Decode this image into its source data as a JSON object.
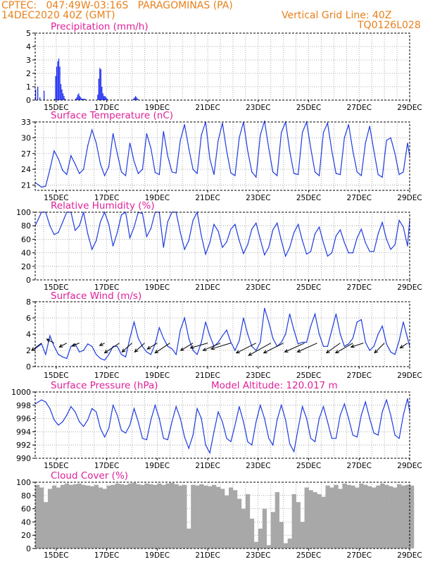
{
  "header": {
    "line1": "CPTEC:   047:49W-03:16S   PARAGOMINAS (PA)",
    "line2": "14DEC2020 40Z (GMT)",
    "grid_note": "Vertical Grid Line: 40Z",
    "run_code": "TQ0126L028"
  },
  "colors": {
    "header": "#e8801c",
    "title": "#e0209a",
    "line": "#1f3be0",
    "bar": "#1d2bf2",
    "cloud": "#a8a8a8",
    "arrow": "#000000"
  },
  "x_axis": {
    "ticks": [
      "15DEC",
      "17DEC",
      "19DEC",
      "21DEC",
      "23DEC",
      "25DEC",
      "27DEC",
      "29DEC"
    ],
    "tick_hours": [
      20,
      68,
      116,
      164,
      212,
      260,
      308,
      356
    ],
    "range_hours": [
      0,
      356
    ],
    "grid_step_hours": 12
  },
  "chart_data": [
    {
      "id": "precip",
      "type": "bar",
      "title": "Precipitation (mm/h)",
      "ylim": [
        0,
        5
      ],
      "yticks": [
        0,
        1,
        2,
        3,
        4,
        5
      ],
      "x_hours": [
        0,
        2,
        4,
        6,
        8,
        18,
        19,
        20,
        21,
        22,
        23,
        24,
        25,
        26,
        27,
        28,
        38,
        39,
        40,
        41,
        42,
        43,
        44,
        45,
        46,
        47,
        48,
        58,
        59,
        60,
        61,
        62,
        63,
        64,
        65,
        66,
        67,
        68,
        86,
        87,
        88,
        89,
        90,
        91,
        92,
        93,
        94,
        95,
        96,
        97,
        98,
        99,
        108,
        109,
        110,
        111,
        112,
        113,
        114,
        115,
        116,
        117,
        118,
        119,
        120,
        121,
        122,
        123,
        124,
        131,
        132,
        133,
        134,
        135,
        136,
        137,
        138,
        139,
        140,
        141,
        142,
        143,
        144,
        145,
        146,
        147,
        148,
        157,
        158,
        159,
        160,
        161,
        162,
        163,
        164,
        165,
        166,
        167,
        168,
        169,
        170,
        171,
        172,
        173,
        174,
        175,
        176,
        177,
        178,
        179,
        180,
        181,
        182,
        183,
        184,
        185,
        186,
        345,
        346,
        347,
        348,
        349,
        350,
        351,
        352,
        353,
        354
      ],
      "values": [
        0.8,
        1.0,
        0.2,
        0,
        0.7,
        0.1,
        1.8,
        2.5,
        2.9,
        3.1,
        2.5,
        1.2,
        0.8,
        0.5,
        0.3,
        0.1,
        0.1,
        0.2,
        0.4,
        0.5,
        0.3,
        0.2,
        0.1,
        0.1,
        0.1,
        0.1,
        0,
        0,
        0.4,
        1.6,
        2.4,
        2.3,
        1.0,
        0.5,
        0.3,
        0.3,
        0.2,
        0.1,
        0,
        0,
        0,
        0,
        0,
        0,
        0,
        0.1,
        0.2,
        0.3,
        0.2,
        0.1,
        0,
        0,
        0,
        0,
        0,
        0,
        0,
        0,
        0,
        0,
        0,
        0,
        0,
        0,
        0,
        0,
        0,
        0,
        0,
        0,
        0,
        0,
        0,
        0,
        0,
        0,
        0,
        0,
        0,
        0,
        0,
        0,
        0,
        0,
        0,
        0,
        0,
        0,
        0,
        0,
        0,
        0,
        0,
        0,
        0,
        0,
        0,
        0,
        0,
        0,
        0,
        0,
        0,
        0,
        0,
        0,
        0,
        0,
        0,
        0,
        0,
        0,
        0,
        0,
        0,
        0,
        0,
        0,
        0,
        0,
        0,
        0,
        0,
        0,
        0,
        0,
        0
      ]
    },
    {
      "id": "temp",
      "type": "line",
      "title": "Surface Temperature (nC)",
      "ylim": [
        20,
        33
      ],
      "yticks": [
        21,
        24,
        27,
        30,
        33
      ],
      "x_hours": [
        0,
        6,
        10,
        14,
        18,
        22,
        26,
        30,
        34,
        38,
        42,
        46,
        50,
        54,
        58,
        62,
        66,
        70,
        74,
        78,
        82,
        86,
        90,
        94,
        98,
        102,
        106,
        110,
        114,
        118,
        122,
        126,
        130,
        134,
        138,
        142,
        146,
        150,
        154,
        158,
        162,
        166,
        170,
        174,
        178,
        182,
        186,
        190,
        194,
        198,
        202,
        206,
        210,
        214,
        218,
        222,
        226,
        230,
        234,
        238,
        242,
        246,
        250,
        254,
        258,
        262,
        266,
        270,
        274,
        278,
        282,
        286,
        290,
        294,
        298,
        302,
        306,
        310,
        314,
        318,
        322,
        326,
        330,
        334,
        338,
        342,
        346,
        350,
        354,
        356
      ],
      "values": [
        21.5,
        20.6,
        20.8,
        24.0,
        27.5,
        26.0,
        23.8,
        23.0,
        26.6,
        25.0,
        23.2,
        24.0,
        28.5,
        31.5,
        29.0,
        25.0,
        22.8,
        24.5,
        30.8,
        27.0,
        23.5,
        22.8,
        29.0,
        25.5,
        23.2,
        24.0,
        30.8,
        28.0,
        23.4,
        23.0,
        31.2,
        26.5,
        23.5,
        23.3,
        29.5,
        32.5,
        28.0,
        24.0,
        23.2,
        30.5,
        33.0,
        26.0,
        23.0,
        29.5,
        32.8,
        27.5,
        23.3,
        22.8,
        30.0,
        33.0,
        27.5,
        23.5,
        22.5,
        30.5,
        33.2,
        28.0,
        23.5,
        22.8,
        31.0,
        33.0,
        27.5,
        23.2,
        23.0,
        31.0,
        33.0,
        28.0,
        23.5,
        22.8,
        31.0,
        32.8,
        27.5,
        23.2,
        23.0,
        30.0,
        32.5,
        27.5,
        23.5,
        22.8,
        29.0,
        32.2,
        27.5,
        23.0,
        22.5,
        29.5,
        30.0,
        27.0,
        23.0,
        23.5,
        29.0,
        26.5
      ]
    },
    {
      "id": "rh",
      "type": "line",
      "title": "Relative Humidity (%)",
      "ylim": [
        0,
        100
      ],
      "yticks": [
        0,
        20,
        40,
        60,
        80,
        100
      ],
      "x_hours": [
        0,
        6,
        10,
        14,
        18,
        22,
        26,
        30,
        34,
        38,
        42,
        46,
        50,
        54,
        58,
        62,
        66,
        70,
        74,
        78,
        82,
        86,
        90,
        94,
        98,
        102,
        106,
        110,
        114,
        118,
        122,
        126,
        130,
        134,
        138,
        142,
        146,
        150,
        154,
        158,
        162,
        166,
        170,
        174,
        178,
        182,
        186,
        190,
        194,
        198,
        202,
        206,
        210,
        214,
        218,
        222,
        226,
        230,
        234,
        238,
        242,
        246,
        250,
        254,
        258,
        262,
        266,
        270,
        274,
        278,
        282,
        286,
        290,
        294,
        298,
        302,
        306,
        310,
        314,
        318,
        322,
        326,
        330,
        334,
        338,
        342,
        346,
        350,
        354,
        356
      ],
      "values": [
        80,
        100,
        100,
        80,
        67,
        70,
        85,
        100,
        100,
        73,
        80,
        100,
        68,
        45,
        58,
        86,
        100,
        82,
        50,
        70,
        96,
        100,
        62,
        78,
        100,
        98,
        64,
        76,
        100,
        100,
        48,
        86,
        100,
        100,
        70,
        45,
        58,
        88,
        100,
        65,
        38,
        55,
        82,
        72,
        48,
        56,
        75,
        82,
        58,
        39,
        52,
        75,
        84,
        60,
        37,
        48,
        74,
        84,
        58,
        35,
        48,
        70,
        82,
        58,
        38,
        42,
        68,
        78,
        55,
        35,
        40,
        65,
        74,
        55,
        40,
        40,
        62,
        75,
        55,
        42,
        42,
        68,
        85,
        60,
        45,
        52,
        88,
        78,
        50,
        88
      ]
    },
    {
      "id": "wind",
      "type": "line",
      "title": "Surface Wind (m/s)",
      "ylim": [
        0,
        8
      ],
      "yticks": [
        0,
        2,
        4,
        6,
        8
      ],
      "x_hours": [
        0,
        6,
        10,
        14,
        18,
        22,
        26,
        30,
        34,
        38,
        42,
        46,
        50,
        54,
        58,
        62,
        66,
        70,
        74,
        78,
        82,
        86,
        90,
        94,
        98,
        102,
        106,
        110,
        114,
        118,
        122,
        126,
        130,
        134,
        138,
        142,
        146,
        150,
        154,
        158,
        162,
        166,
        170,
        174,
        178,
        182,
        186,
        190,
        194,
        198,
        202,
        206,
        210,
        214,
        218,
        222,
        226,
        230,
        234,
        238,
        242,
        246,
        250,
        254,
        258,
        262,
        266,
        270,
        274,
        278,
        282,
        286,
        290,
        294,
        298,
        302,
        306,
        310,
        314,
        318,
        322,
        326,
        330,
        334,
        338,
        342,
        346,
        350,
        354,
        356
      ],
      "values": [
        2.2,
        2.8,
        1.5,
        3.8,
        2.5,
        1.5,
        1.2,
        1.0,
        2.5,
        2.8,
        1.8,
        2.0,
        2.8,
        2.5,
        1.5,
        1.0,
        0.8,
        1.5,
        2.5,
        2.5,
        1.5,
        1.2,
        3.5,
        5.5,
        3.5,
        2.5,
        1.8,
        1.5,
        2.8,
        4.8,
        3.5,
        2.5,
        2.2,
        1.5,
        4.5,
        6.0,
        3.5,
        2.0,
        1.5,
        3.0,
        5.5,
        3.8,
        2.5,
        3.0,
        3.8,
        4.5,
        3.0,
        2.0,
        3.2,
        6.0,
        4.0,
        2.5,
        2.0,
        3.0,
        7.2,
        5.5,
        3.5,
        2.5,
        3.0,
        4.0,
        6.5,
        4.5,
        2.8,
        3.0,
        3.0,
        5.0,
        6.5,
        4.0,
        2.5,
        2.5,
        4.5,
        6.5,
        4.0,
        2.5,
        2.8,
        3.5,
        5.5,
        5.8,
        3.0,
        2.0,
        2.5,
        4.0,
        5.0,
        2.8,
        1.8,
        1.5,
        3.2,
        5.5,
        3.5,
        2.5
      ],
      "vectors": [
        {
          "hour": 6,
          "u": -2.0,
          "v": -1.5
        },
        {
          "hour": 18,
          "u": -1.5,
          "v": 0.8
        },
        {
          "hour": 30,
          "u": -1.5,
          "v": -0.8
        },
        {
          "hour": 42,
          "u": -1.5,
          "v": -0.6
        },
        {
          "hour": 66,
          "u": -1.0,
          "v": -0.5
        },
        {
          "hour": 80,
          "u": -3.0,
          "v": -2.0
        },
        {
          "hour": 92,
          "u": -2.0,
          "v": -1.8
        },
        {
          "hour": 104,
          "u": -2.0,
          "v": -1.8
        },
        {
          "hour": 116,
          "u": -2.0,
          "v": -1.2
        },
        {
          "hour": 128,
          "u": -3.0,
          "v": -2.0
        },
        {
          "hour": 150,
          "u": -2.5,
          "v": -1.5
        },
        {
          "hour": 164,
          "u": -3.5,
          "v": -1.0
        },
        {
          "hour": 176,
          "u": -3.5,
          "v": -1.5
        },
        {
          "hour": 186,
          "u": -4.0,
          "v": -1.2
        },
        {
          "hour": 210,
          "u": -4.0,
          "v": -2.0
        },
        {
          "hour": 224,
          "u": -4.5,
          "v": -2.5
        },
        {
          "hour": 236,
          "u": -4.0,
          "v": -2.0
        },
        {
          "hour": 256,
          "u": -4.0,
          "v": -1.8
        },
        {
          "hour": 268,
          "u": -4.0,
          "v": -1.8
        },
        {
          "hour": 290,
          "u": -2.8,
          "v": -2.0
        },
        {
          "hour": 302,
          "u": -3.5,
          "v": -2.0
        },
        {
          "hour": 312,
          "u": -2.5,
          "v": -0.8
        },
        {
          "hour": 332,
          "u": -2.0,
          "v": -2.0
        },
        {
          "hour": 354,
          "u": -1.5,
          "v": -1.0
        }
      ]
    },
    {
      "id": "press",
      "type": "line",
      "title": "Surface Pressure (hPa)",
      "subtitle": "Model Altitude: 120.017 m",
      "ylim": [
        990,
        1000
      ],
      "yticks": [
        990,
        992,
        994,
        996,
        998,
        1000
      ],
      "x_hours": [
        0,
        6,
        10,
        14,
        18,
        22,
        26,
        30,
        34,
        38,
        42,
        46,
        50,
        54,
        58,
        62,
        66,
        70,
        74,
        78,
        82,
        86,
        90,
        94,
        98,
        102,
        106,
        110,
        114,
        118,
        122,
        126,
        130,
        134,
        138,
        142,
        146,
        150,
        154,
        158,
        162,
        166,
        170,
        174,
        178,
        182,
        186,
        190,
        194,
        198,
        202,
        206,
        210,
        214,
        218,
        222,
        226,
        230,
        234,
        238,
        242,
        246,
        250,
        254,
        258,
        262,
        266,
        270,
        274,
        278,
        282,
        286,
        290,
        294,
        298,
        302,
        306,
        310,
        314,
        318,
        322,
        326,
        330,
        334,
        338,
        342,
        346,
        350,
        354,
        356
      ],
      "values": [
        998.2,
        998.8,
        998.5,
        997.5,
        995.8,
        995.0,
        995.5,
        996.5,
        997.8,
        997.0,
        995.5,
        994.8,
        995.8,
        997.5,
        997.0,
        994.5,
        993.2,
        994.5,
        998.0,
        996.5,
        994.2,
        993.8,
        995.0,
        997.5,
        995.5,
        993.0,
        992.8,
        995.8,
        998.0,
        996.0,
        993.0,
        992.8,
        995.5,
        997.8,
        996.0,
        993.2,
        991.5,
        993.5,
        997.5,
        996.0,
        992.0,
        990.8,
        994.0,
        997.0,
        995.5,
        993.0,
        992.5,
        995.0,
        997.8,
        995.5,
        992.5,
        992.0,
        995.5,
        998.0,
        996.0,
        993.0,
        992.0,
        995.8,
        998.0,
        995.8,
        992.2,
        991.0,
        994.5,
        997.8,
        996.0,
        993.0,
        992.5,
        996.0,
        997.8,
        995.5,
        993.0,
        993.0,
        996.5,
        998.2,
        996.0,
        993.5,
        993.2,
        996.5,
        998.5,
        996.0,
        993.8,
        993.5,
        997.0,
        998.8,
        996.5,
        993.5,
        993.0,
        996.5,
        999.0,
        997.0
      ]
    },
    {
      "id": "cloud",
      "type": "bar",
      "title": "Cloud Cover (%)",
      "ylim": [
        0,
        100
      ],
      "yticks": [
        0,
        20,
        40,
        60,
        80,
        100
      ],
      "x_hours": [
        0,
        4,
        8,
        12,
        16,
        20,
        24,
        28,
        32,
        36,
        40,
        44,
        48,
        52,
        56,
        60,
        64,
        68,
        72,
        76,
        80,
        84,
        88,
        92,
        96,
        100,
        104,
        108,
        112,
        116,
        120,
        124,
        128,
        132,
        136,
        140,
        144,
        148,
        152,
        156,
        160,
        164,
        168,
        172,
        176,
        180,
        184,
        188,
        192,
        196,
        200,
        204,
        208,
        212,
        216,
        220,
        224,
        228,
        232,
        236,
        240,
        244,
        248,
        252,
        256,
        260,
        264,
        268,
        272,
        276,
        280,
        284,
        288,
        292,
        296,
        300,
        304,
        308,
        312,
        316,
        320,
        324,
        328,
        332,
        336,
        340,
        344,
        348,
        352,
        356
      ],
      "values": [
        96,
        92,
        70,
        90,
        95,
        92,
        96,
        98,
        96,
        97,
        98,
        96,
        95,
        94,
        96,
        92,
        90,
        95,
        96,
        98,
        97,
        96,
        98,
        99,
        97,
        96,
        98,
        97,
        96,
        98,
        96,
        98,
        99,
        97,
        95,
        96,
        30,
        96,
        95,
        97,
        95,
        94,
        96,
        93,
        90,
        80,
        92,
        88,
        75,
        60,
        82,
        45,
        10,
        30,
        60,
        5,
        55,
        85,
        40,
        8,
        15,
        82,
        70,
        40,
        92,
        88,
        85,
        82,
        78,
        95,
        92,
        96,
        90,
        98,
        96,
        95,
        92,
        98,
        96,
        94,
        92,
        95,
        98,
        96,
        94,
        92,
        97,
        95,
        96,
        95
      ]
    }
  ]
}
